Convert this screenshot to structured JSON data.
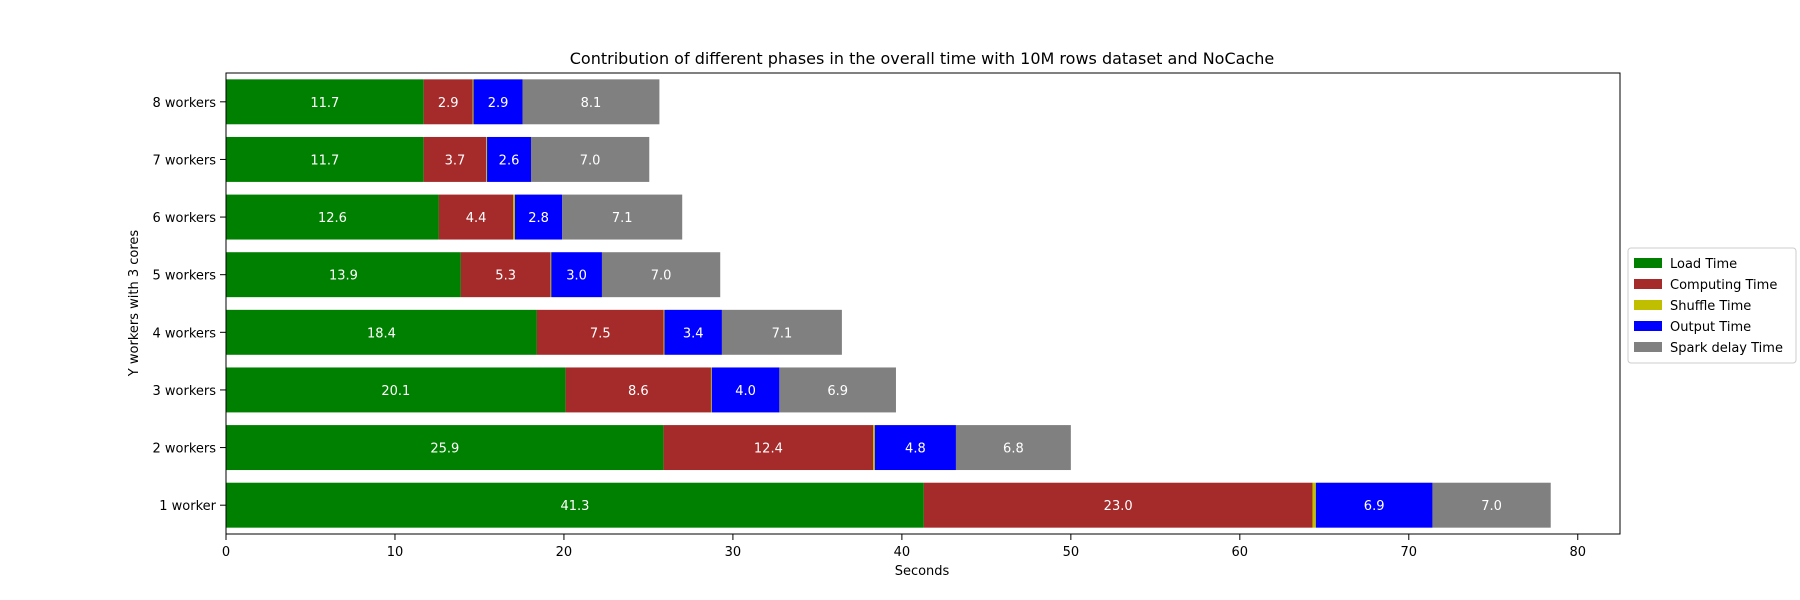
{
  "chart_data": {
    "type": "bar",
    "orientation": "horizontal",
    "stacked": true,
    "title": "Contribution of different phases in the overall time with 10M rows dataset and NoCache",
    "xlabel": "Seconds",
    "ylabel": "Y workers with 3 cores",
    "xlim": [
      0,
      82.5
    ],
    "xticks": [
      0,
      10,
      20,
      30,
      40,
      50,
      60,
      70,
      80
    ],
    "grid": false,
    "legend_position": "right",
    "categories": [
      "1 worker",
      "2 workers",
      "3 workers",
      "4 workers",
      "5 workers",
      "6 workers",
      "7 workers",
      "8 workers"
    ],
    "series": [
      {
        "name": "Load Time",
        "color": "#008000",
        "values": [
          41.3,
          25.9,
          20.1,
          18.4,
          13.9,
          12.6,
          11.7,
          11.7
        ],
        "labels": [
          "41.3",
          "25.9",
          "20.1",
          "18.4",
          "13.9",
          "12.6",
          "11.7",
          "11.7"
        ]
      },
      {
        "name": "Computing Time",
        "color": "#a52a2a",
        "values": [
          23.0,
          12.4,
          8.6,
          7.5,
          5.3,
          4.4,
          3.7,
          2.9
        ],
        "labels": [
          "23.0",
          "12.4",
          "8.6",
          "7.5",
          "5.3",
          "4.4",
          "3.7",
          "2.9"
        ]
      },
      {
        "name": "Shuffle Time",
        "color": "#bfbf00",
        "values": [
          0.2,
          0.1,
          0.05,
          0.05,
          0.05,
          0.1,
          0.05,
          0.05
        ],
        "labels": [
          "",
          "",
          "",
          "",
          "",
          "",
          "",
          ""
        ]
      },
      {
        "name": "Output Time",
        "color": "#0000ff",
        "values": [
          6.9,
          4.8,
          4.0,
          3.4,
          3.0,
          2.8,
          2.6,
          2.9
        ],
        "labels": [
          "6.9",
          "4.8",
          "4.0",
          "3.4",
          "3.0",
          "2.8",
          "2.6",
          "2.9"
        ]
      },
      {
        "name": "Spark delay Time",
        "color": "#808080",
        "values": [
          7.0,
          6.8,
          6.9,
          7.1,
          7.0,
          7.1,
          7.0,
          8.1
        ],
        "labels": [
          "7.0",
          "6.8",
          "6.9",
          "7.1",
          "7.0",
          "7.1",
          "7.0",
          "8.1"
        ]
      }
    ]
  }
}
